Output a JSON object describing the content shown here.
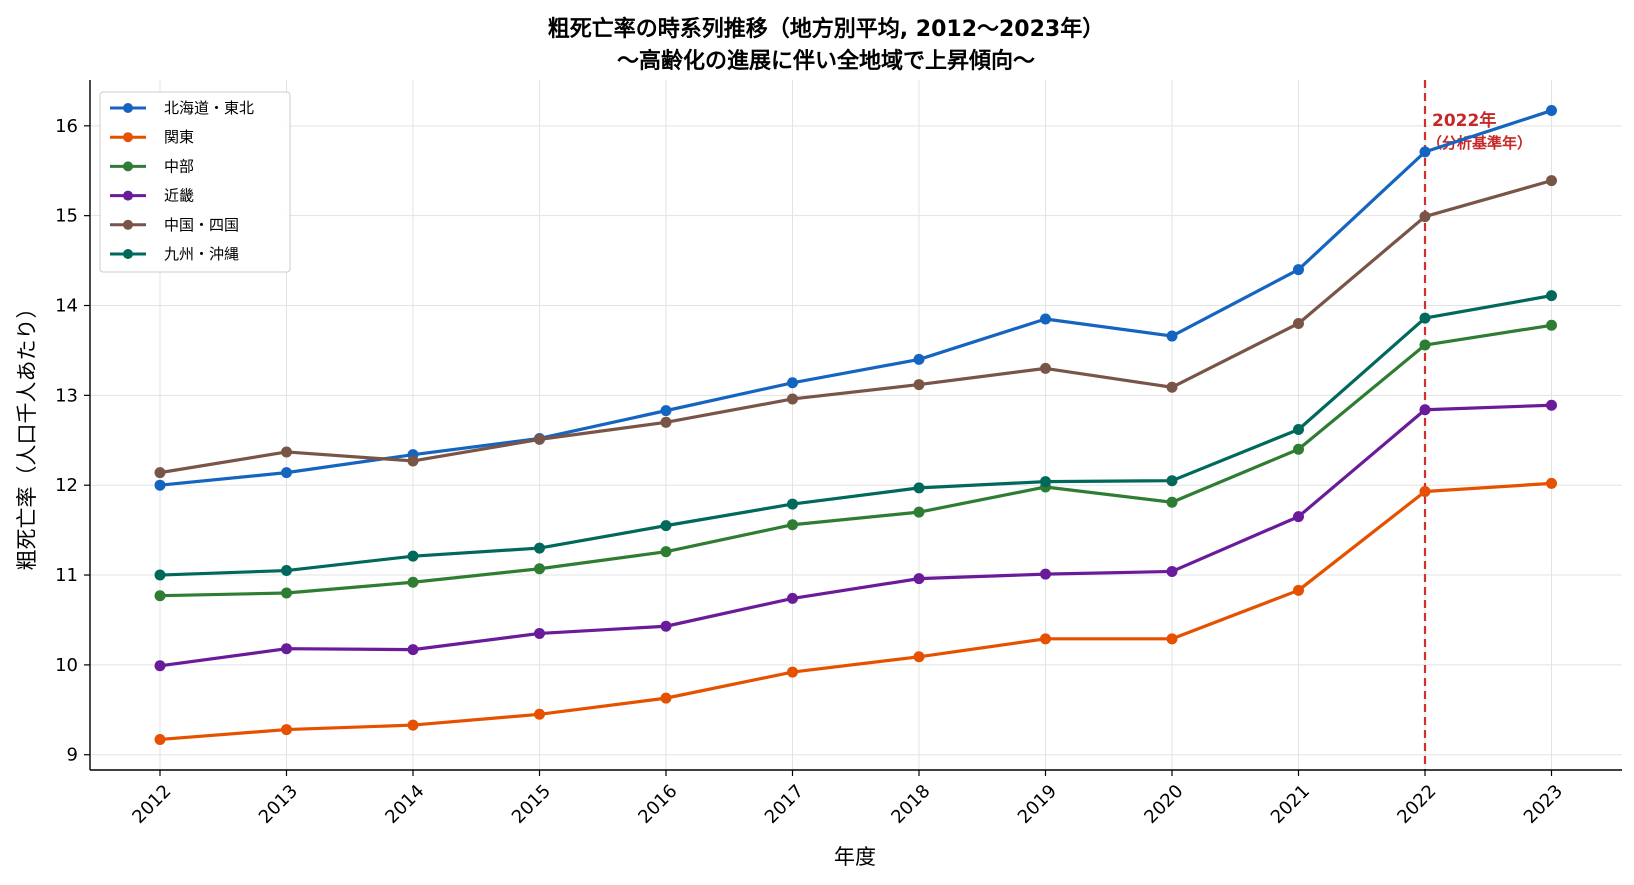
{
  "chart_data": {
    "type": "line",
    "title": "粗死亡率の時系列推移（地方別平均, 2012〜2023年）",
    "subtitle": "〜高齢化の進展に伴い全地域で上昇傾向〜",
    "xlabel": "年度",
    "ylabel": "粗死亡率（人口千人あたり）",
    "x": [
      "2012",
      "2013",
      "2014",
      "2015",
      "2016",
      "2017",
      "2018",
      "2019",
      "2020",
      "2021",
      "2022",
      "2023"
    ],
    "ylim": [
      8.83,
      16.51
    ],
    "yticks": [
      9,
      10,
      11,
      12,
      13,
      14,
      15,
      16
    ],
    "grid": true,
    "legend_position": "top-left",
    "series": [
      {
        "name": "北海道・東北",
        "color": "#1565c0",
        "values": [
          12.0,
          12.14,
          12.34,
          12.52,
          12.83,
          13.14,
          13.4,
          13.85,
          13.66,
          14.4,
          15.71,
          16.17
        ]
      },
      {
        "name": "関東",
        "color": "#e65100",
        "values": [
          9.17,
          9.28,
          9.33,
          9.45,
          9.63,
          9.92,
          10.09,
          10.29,
          10.29,
          10.83,
          11.93,
          12.02
        ]
      },
      {
        "name": "中部",
        "color": "#2e7d32",
        "values": [
          10.77,
          10.8,
          10.92,
          11.07,
          11.26,
          11.56,
          11.7,
          11.98,
          11.81,
          12.4,
          13.56,
          13.78
        ]
      },
      {
        "name": "近畿",
        "color": "#6a1b9a",
        "values": [
          9.99,
          10.18,
          10.17,
          10.35,
          10.43,
          10.74,
          10.96,
          11.01,
          11.04,
          11.65,
          12.84,
          12.89
        ]
      },
      {
        "name": "中国・四国",
        "color": "#795548",
        "values": [
          12.14,
          12.37,
          12.27,
          12.51,
          12.7,
          12.96,
          13.12,
          13.3,
          13.09,
          13.8,
          14.99,
          15.39
        ]
      },
      {
        "name": "九州・沖縄",
        "color": "#00695c",
        "values": [
          11.0,
          11.05,
          11.21,
          11.3,
          11.55,
          11.79,
          11.97,
          12.04,
          12.05,
          12.62,
          13.86,
          14.11
        ]
      }
    ],
    "annotations": [
      {
        "x": "2022",
        "line_style": "dashed",
        "color": "#d32f2f",
        "text": "2022年",
        "subtext": "（分析基準年）"
      }
    ]
  }
}
